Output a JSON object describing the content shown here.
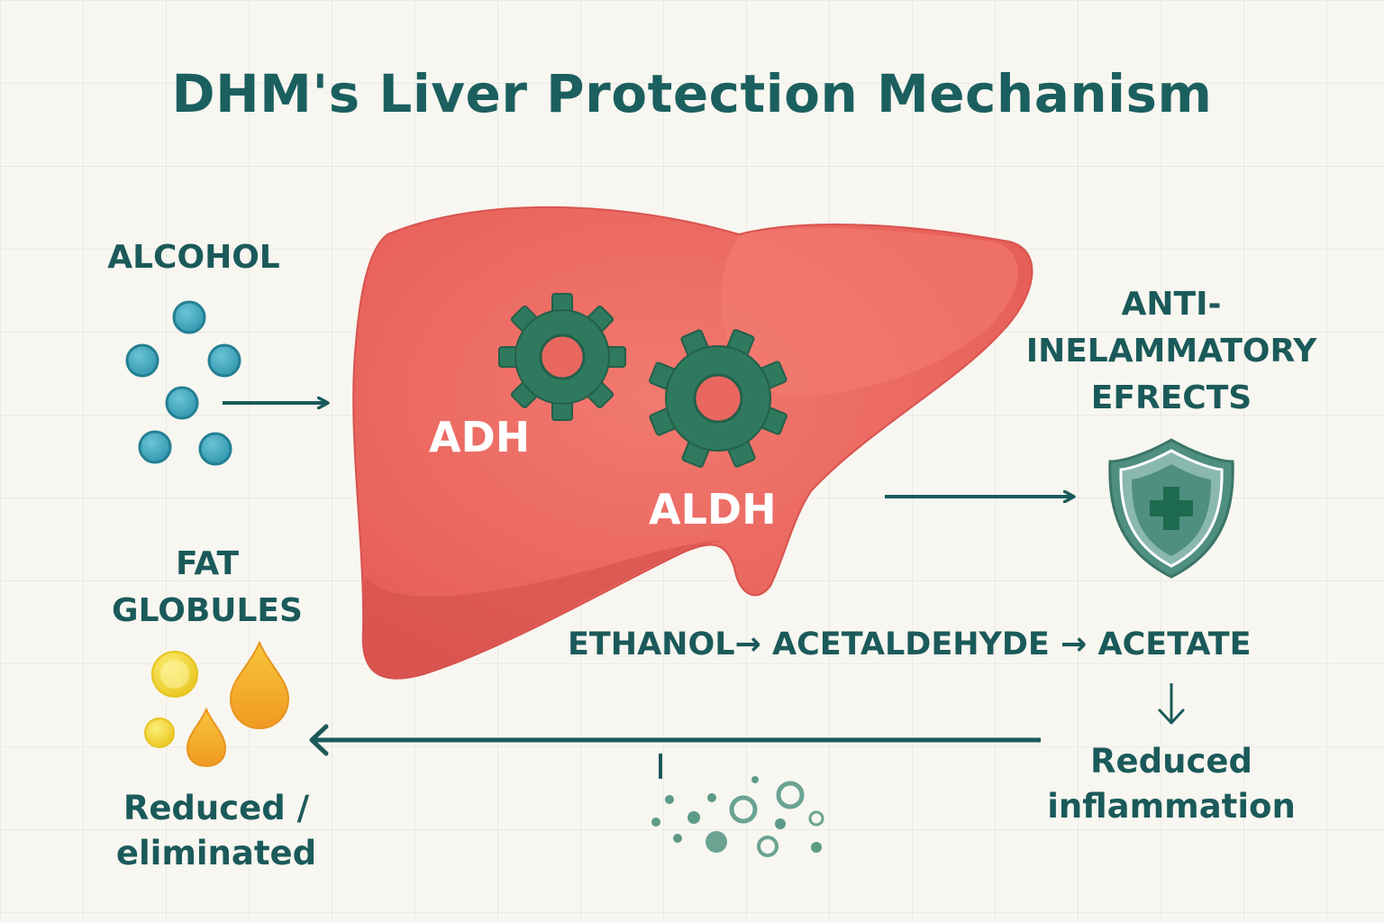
{
  "title": "DHM's Liver Protection Mechanism",
  "labels": {
    "alcohol": "ALCOHOL",
    "fat_line1": "FAT",
    "fat_line2": "GLOBULES",
    "reduced_eliminated_line1": "Reduced /",
    "reduced_eliminated_line2": "eliminated",
    "anti_line1": "ANTI-",
    "anti_line2": "INELAMMATORY",
    "anti_line3": "EFRECTS",
    "pathway_ethanol": "ETHANOL→",
    "pathway_acetaldehyde": "ACETALDEHYDE →",
    "pathway_acetate": "ACETATE",
    "reduced_inflammation_line1": "Reduced",
    "reduced_inflammation_line2": "inflammation",
    "enzyme_adh": "ADH",
    "enzyme_aldh": "ALDH"
  },
  "icons": {
    "alcohol_molecules": "teal-circles",
    "gears": "gear-icon",
    "shield": "shield-plus-icon",
    "fat_droplets": "droplet-icon",
    "particles": "scattered-particles"
  },
  "colors": {
    "title": "#1b5f5f",
    "text": "#1b5a5a",
    "liver": "#ee6b63",
    "gear": "#2f7a5e",
    "molecule": "#3fa8c0",
    "shield": "#4f8f80",
    "fat_yellow": "#f2d02a",
    "fat_orange": "#f4a72a",
    "background": "#f8f6f0"
  }
}
